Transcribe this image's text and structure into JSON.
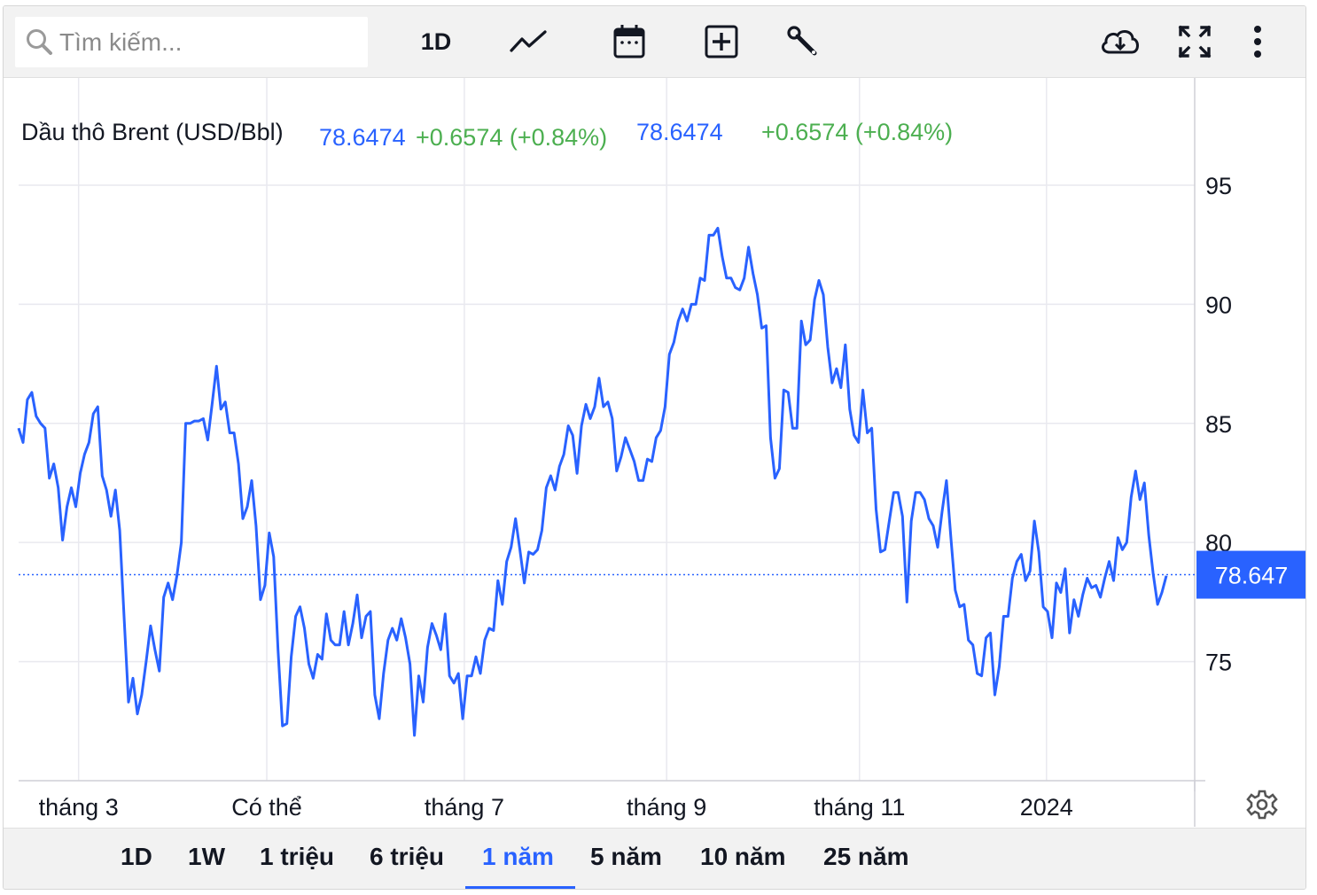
{
  "toolbar": {
    "search_placeholder": "Tìm kiếm...",
    "interval_label": "1D",
    "icons": [
      "search-icon",
      "line-chart-icon",
      "calendar-icon",
      "add-indicator-icon",
      "wrench-icon",
      "cloud-download-icon",
      "fullscreen-icon",
      "more-vertical-icon"
    ]
  },
  "legend": {
    "name": "Dầu thô Brent (USD/Bbl)",
    "last": "78.6474",
    "change": "+0.6574 (+0.84%)",
    "last2": "78.6474",
    "change2": "+0.6574 (+0.84%)"
  },
  "price_label": "78.647",
  "colors": {
    "line": "#2962ff",
    "up": "#4caf50",
    "grid": "#e9e9ef",
    "text": "#131722",
    "accent": "#2962ff"
  },
  "ranges": [
    "1D",
    "1W",
    "1 triệu",
    "6 triệu",
    "1 năm",
    "5 năm",
    "10 năm",
    "25 năm"
  ],
  "active_range": "1 năm",
  "chart_data": {
    "type": "line",
    "title": "Dầu thô Brent (USD/Bbl)",
    "xlabel": "",
    "ylabel": "",
    "ylim": [
      70,
      99.5
    ],
    "yticks": [
      75,
      80,
      85,
      90,
      95
    ],
    "xticks": [
      {
        "label": "tháng 3",
        "t": 0.051
      },
      {
        "label": "Có thể",
        "t": 0.211
      },
      {
        "label": "tháng 7",
        "t": 0.379
      },
      {
        "label": "tháng 9",
        "t": 0.551
      },
      {
        "label": "tháng 11",
        "t": 0.715
      },
      {
        "label": "2024",
        "t": 0.874
      }
    ],
    "last_value": 78.647,
    "series": [
      {
        "values": [
          84.8,
          84.2,
          86.0,
          86.3,
          85.3,
          85.0,
          84.8,
          82.7,
          83.3,
          82.3,
          80.1,
          81.5,
          82.3,
          81.5,
          82.9,
          83.7,
          84.2,
          85.4,
          85.7,
          82.8,
          82.2,
          81.1,
          82.2,
          80.5,
          76.8,
          73.3,
          74.3,
          72.8,
          73.6,
          75.0,
          76.5,
          75.5,
          74.6,
          77.7,
          78.3,
          77.6,
          78.6,
          80.0,
          85.0,
          85.0,
          85.1,
          85.1,
          85.2,
          84.3,
          85.8,
          87.4,
          85.6,
          85.9,
          84.6,
          84.6,
          83.3,
          81.0,
          81.5,
          82.6,
          80.7,
          77.6,
          78.2,
          80.4,
          79.4,
          75.5,
          72.3,
          72.4,
          75.2,
          76.9,
          77.3,
          76.4,
          74.9,
          74.3,
          75.3,
          75.1,
          77.0,
          75.9,
          75.7,
          75.7,
          77.1,
          75.7,
          76.6,
          77.8,
          76.0,
          76.9,
          77.1,
          73.6,
          72.6,
          74.5,
          75.9,
          76.4,
          75.9,
          76.8,
          76.0,
          74.9,
          71.9,
          74.4,
          73.3,
          75.6,
          76.6,
          76.1,
          75.5,
          77.0,
          74.4,
          74.1,
          74.5,
          72.6,
          74.4,
          74.4,
          75.2,
          74.5,
          75.9,
          76.4,
          76.3,
          78.4,
          77.4,
          79.2,
          79.8,
          81.0,
          79.7,
          78.3,
          79.6,
          79.5,
          79.7,
          80.5,
          82.3,
          82.8,
          82.2,
          83.2,
          83.7,
          84.9,
          84.5,
          82.9,
          84.9,
          85.8,
          85.2,
          85.7,
          86.9,
          85.7,
          85.9,
          85.2,
          83.0,
          83.6,
          84.4,
          83.9,
          83.4,
          82.6,
          82.6,
          83.5,
          83.4,
          84.4,
          84.7,
          85.7,
          87.9,
          88.4,
          89.3,
          89.8,
          89.3,
          90.0,
          90.0,
          91.1,
          91.0,
          92.9,
          92.9,
          93.2,
          92.0,
          91.1,
          91.1,
          90.7,
          90.6,
          91.1,
          92.4,
          91.3,
          90.4,
          89.0,
          89.1,
          84.4,
          82.7,
          83.1,
          86.4,
          86.3,
          84.8,
          84.8,
          89.3,
          88.3,
          88.5,
          90.2,
          91.0,
          90.4,
          88.2,
          86.7,
          87.3,
          86.5,
          88.3,
          85.6,
          84.5,
          84.2,
          86.4,
          84.6,
          84.8,
          81.4,
          79.6,
          79.7,
          80.9,
          82.1,
          82.1,
          81.1,
          77.5,
          80.9,
          82.1,
          82.1,
          81.8,
          81.0,
          80.7,
          79.8,
          81.3,
          82.6,
          80.2,
          78.0,
          77.3,
          77.4,
          75.9,
          75.7,
          74.5,
          74.4,
          76.0,
          76.2,
          73.6,
          74.8,
          76.9,
          76.9,
          78.5,
          79.2,
          79.5,
          78.4,
          78.8,
          80.9,
          79.6,
          77.3,
          77.1,
          76.0,
          78.3,
          77.9,
          78.9,
          76.2,
          77.6,
          76.9,
          77.8,
          78.5,
          78.1,
          78.2,
          77.7,
          78.5,
          79.2,
          78.4,
          80.2,
          79.7,
          80.0,
          81.9,
          83.0,
          81.8,
          82.5,
          80.3,
          78.7,
          77.4,
          77.9,
          78.6
        ]
      }
    ]
  }
}
